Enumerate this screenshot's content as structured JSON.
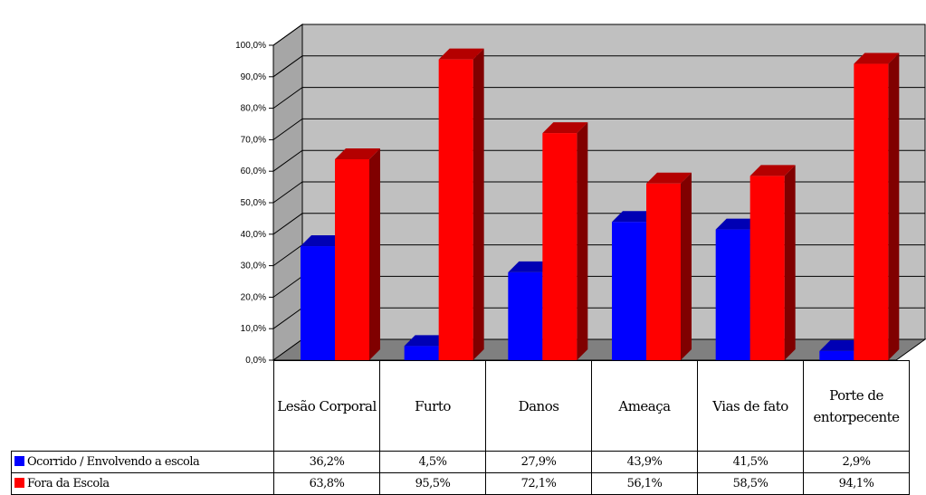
{
  "chart_data": {
    "type": "bar",
    "title": "",
    "xlabel": "",
    "ylabel": "",
    "ylim": [
      0,
      100
    ],
    "y_ticks": [
      "0,0%",
      "10,0%",
      "20,0%",
      "30,0%",
      "40,0%",
      "50,0%",
      "60,0%",
      "70,0%",
      "80,0%",
      "90,0%",
      "100,0%"
    ],
    "categories": [
      "Lesão Corporal",
      "Furto",
      "Danos",
      "Ameaça",
      "Vias de fato",
      "Porte de entorpecente"
    ],
    "series": [
      {
        "name": "Ocorrido / Envolvendo a escola",
        "color": "#0000ff",
        "values": [
          36.2,
          4.5,
          27.9,
          43.9,
          41.5,
          2.9
        ],
        "labels": [
          "36,2%",
          "4,5%",
          "27,9%",
          "43,9%",
          "41,5%",
          "2,9%"
        ]
      },
      {
        "name": "Fora da Escola",
        "color": "#ff0000",
        "values": [
          63.8,
          95.5,
          72.1,
          56.1,
          58.5,
          94.1
        ],
        "labels": [
          "63,8%",
          "95,5%",
          "72,1%",
          "56,1%",
          "58,5%",
          "94,1%"
        ]
      }
    ],
    "grid": true,
    "legend": "data-table-left",
    "style": "3d"
  }
}
